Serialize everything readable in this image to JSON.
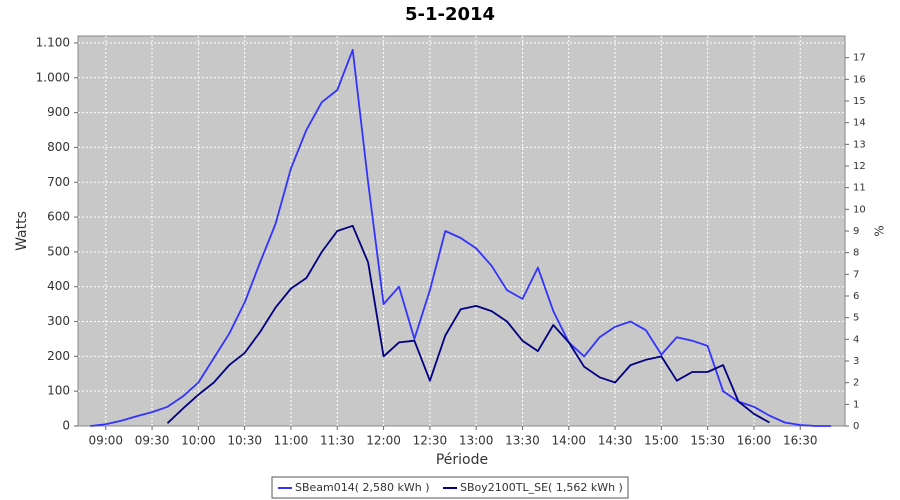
{
  "chart_data": {
    "type": "line",
    "title": "5-1-2014",
    "xlabel": "Période",
    "ylabel": "Watts",
    "y2label": "%",
    "x": [
      "08:50",
      "09:00",
      "09:10",
      "09:20",
      "09:30",
      "09:40",
      "09:50",
      "10:00",
      "10:10",
      "10:20",
      "10:30",
      "10:40",
      "10:50",
      "11:00",
      "11:10",
      "11:20",
      "11:30",
      "11:40",
      "11:50",
      "12:00",
      "12:10",
      "12:20",
      "12:30",
      "12:40",
      "12:50",
      "13:00",
      "13:10",
      "13:20",
      "13:30",
      "13:40",
      "13:50",
      "14:00",
      "14:10",
      "14:20",
      "14:30",
      "14:40",
      "14:50",
      "15:00",
      "15:10",
      "15:20",
      "15:30",
      "15:40",
      "15:50",
      "16:00",
      "16:10",
      "16:20",
      "16:30",
      "16:40",
      "16:50"
    ],
    "series": [
      {
        "name": "SBeam014( 2,580 kWh )",
        "color": "#3333ff",
        "values": [
          0,
          5,
          15,
          28,
          40,
          55,
          85,
          125,
          195,
          265,
          355,
          470,
          580,
          740,
          850,
          930,
          965,
          1080,
          700,
          350,
          400,
          250,
          390,
          560,
          540,
          510,
          460,
          390,
          365,
          455,
          330,
          240,
          200,
          255,
          285,
          300,
          275,
          205,
          255,
          245,
          230,
          100,
          70,
          55,
          30,
          10,
          3,
          0,
          0
        ]
      },
      {
        "name": "SBoy2100TL_SE( 1,562 kWh )",
        "color": "#000080",
        "values": [
          null,
          null,
          null,
          null,
          null,
          8,
          50,
          90,
          125,
          175,
          210,
          270,
          340,
          395,
          425,
          500,
          560,
          575,
          470,
          200,
          240,
          245,
          130,
          260,
          335,
          345,
          330,
          300,
          245,
          215,
          290,
          240,
          170,
          140,
          125,
          175,
          190,
          200,
          130,
          155,
          155,
          175,
          70,
          35,
          10,
          null,
          null,
          null,
          null
        ]
      }
    ],
    "xlim": [
      "08:42",
      "16:59"
    ],
    "xticks": [
      "09:00",
      "09:30",
      "10:00",
      "10:30",
      "11:00",
      "11:30",
      "12:00",
      "12:30",
      "13:00",
      "13:30",
      "14:00",
      "14:30",
      "15:00",
      "15:30",
      "16:00",
      "16:30"
    ],
    "ylim": [
      0,
      1120
    ],
    "yticks": [
      0,
      100,
      200,
      300,
      400,
      500,
      600,
      700,
      800,
      900,
      {
        "value": 1000,
        "label": "1.000"
      },
      {
        "value": 1100,
        "label": "1.100"
      }
    ],
    "y2lim": [
      0,
      18
    ],
    "y2ticks": [
      0,
      1,
      2,
      3,
      4,
      5,
      6,
      7,
      8,
      9,
      10,
      11,
      12,
      13,
      14,
      15,
      16,
      17
    ],
    "grid": true,
    "legend": "bottom"
  }
}
